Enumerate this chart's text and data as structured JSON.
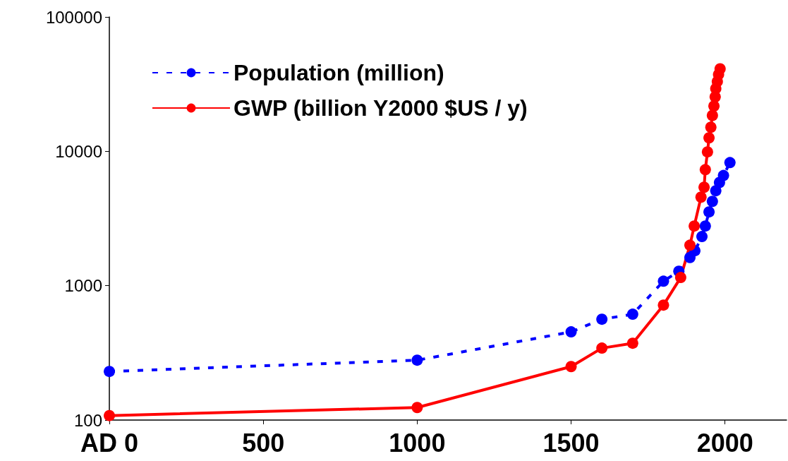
{
  "chart_data": {
    "type": "line",
    "log": "y",
    "marker": "circle",
    "legend": "top left",
    "grid": false,
    "xlim": [
      0,
      2200
    ],
    "xticks": [
      {
        "value": 0,
        "label": "AD 0"
      },
      500,
      1000,
      1500,
      2000
    ],
    "ylim": [
      100,
      100000
    ],
    "yticks": [
      100,
      1000,
      10000,
      100000
    ],
    "series": [
      {
        "name": "Population (million)",
        "color": "#0000ff",
        "line_style": "dashed",
        "x": [
          0,
          1000,
          1500,
          1600,
          1700,
          1800,
          1850,
          1886,
          1902,
          1925,
          1936,
          1948,
          1959,
          1970,
          1982,
          1995,
          2016
        ],
        "values": [
          230,
          279,
          453,
          563,
          613,
          1080,
          1280,
          1620,
          1820,
          2320,
          2780,
          3540,
          4240,
          5090,
          5860,
          6610,
          8240
        ]
      },
      {
        "name": "GWP (billion Y2000 $US / y)",
        "color": "#ff0000",
        "line_style": "solid",
        "x": [
          0,
          1000,
          1500,
          1600,
          1700,
          1800,
          1856,
          1886,
          1900,
          1922,
          1932,
          1936,
          1943,
          1948,
          1954,
          1959,
          1964,
          1968,
          1970,
          1975,
          1979,
          1984
        ],
        "values": [
          108,
          124,
          250,
          343,
          373,
          717,
          1150,
          2000,
          2780,
          4560,
          5400,
          7300,
          9900,
          12600,
          15100,
          18500,
          21700,
          25400,
          29300,
          33100,
          37300,
          41100
        ]
      }
    ]
  }
}
